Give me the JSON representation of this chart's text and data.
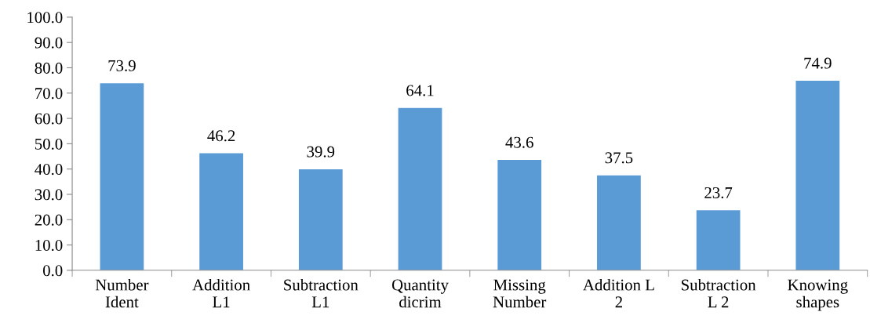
{
  "chart_data": {
    "type": "bar",
    "categories": [
      "Number\nIdent",
      "Addition\nL1",
      "Subtraction\nL1",
      "Quantity\ndicrim",
      "Missing\nNumber",
      "Addition L\n2",
      "Subtraction\nL 2",
      "Knowing\nshapes"
    ],
    "values": [
      73.9,
      46.2,
      39.9,
      64.1,
      43.6,
      37.5,
      23.7,
      74.9
    ],
    "color": "#5b9bd5",
    "ylim": [
      0,
      100
    ],
    "yticks": [
      {
        "value": 0,
        "label": "0.0"
      },
      {
        "value": 10,
        "label": "10.0"
      },
      {
        "value": 20,
        "label": "20.0"
      },
      {
        "value": 30,
        "label": "30.0"
      },
      {
        "value": 40,
        "label": "40.0"
      },
      {
        "value": 50,
        "label": "50.0"
      },
      {
        "value": 60,
        "label": "60.0"
      },
      {
        "value": 70,
        "label": "70.0"
      },
      {
        "value": 80,
        "label": "80.0"
      },
      {
        "value": 90,
        "label": "90.0"
      },
      {
        "value": 100,
        "label": "100.0"
      }
    ],
    "data_labels": true,
    "grid": false,
    "legend": false
  }
}
